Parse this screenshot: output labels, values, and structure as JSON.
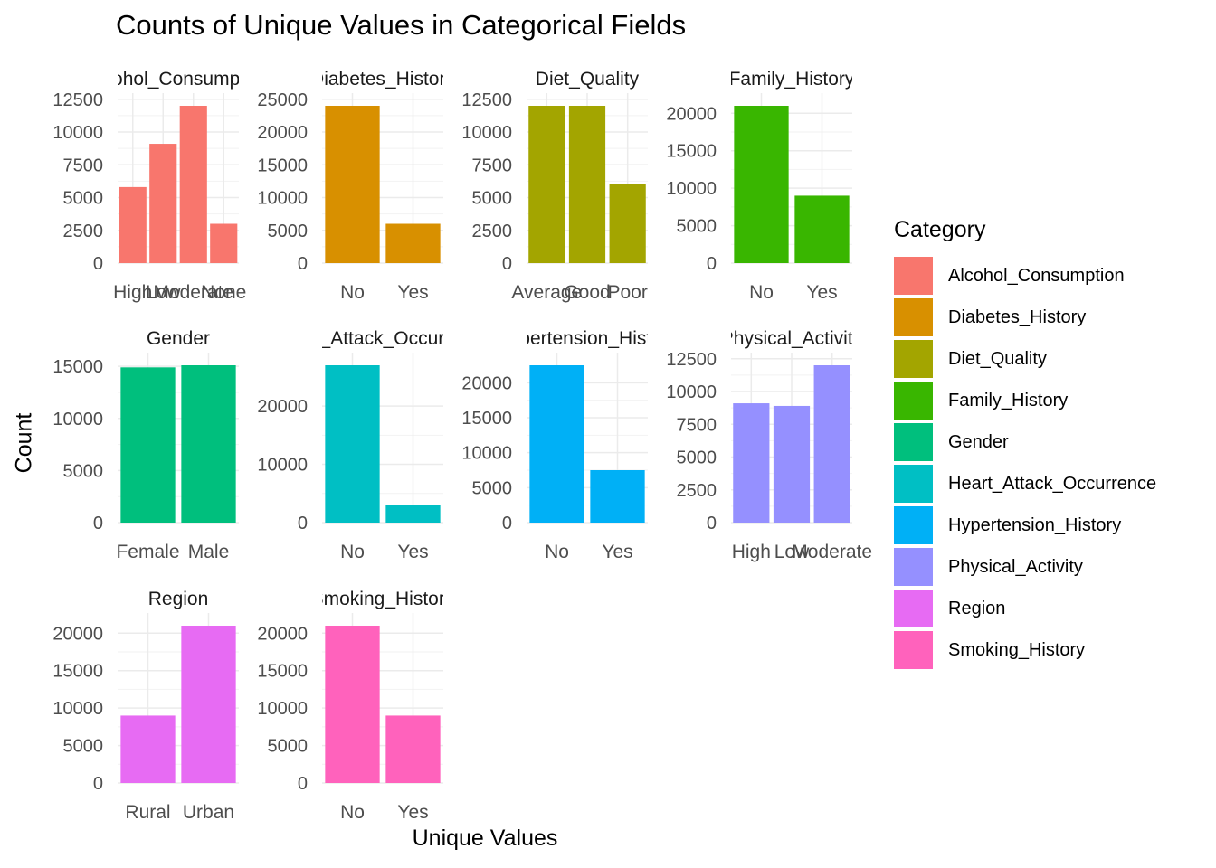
{
  "chart_data": [
    {
      "type": "bar",
      "title": "Counts of Unique Values in Categorical Fields",
      "xlabel": "Unique Values",
      "ylabel": "Count",
      "legend": {
        "title": "Category",
        "placement": "right"
      },
      "grid": true,
      "facets": [
        {
          "name": "Alcohol_Consumption",
          "color": "#F8766D",
          "categories": [
            "High",
            "Moderate",
            "None",
            "Low"
          ],
          "display_categories": [
            "High",
            "Low",
            "Moderate",
            "None"
          ],
          "values": [
            5800,
            9100,
            12000,
            3000
          ],
          "ylim": [
            0,
            12500
          ],
          "yticks": [
            0,
            2500,
            5000,
            7500,
            10000,
            12500
          ]
        },
        {
          "name": "Diabetes_History",
          "color": "#D89000",
          "categories": [
            "No",
            "Yes"
          ],
          "values": [
            24000,
            6000
          ],
          "ylim": [
            0,
            25000
          ],
          "yticks": [
            0,
            5000,
            10000,
            15000,
            20000,
            25000
          ]
        },
        {
          "name": "Diet_Quality",
          "color": "#A3A500",
          "categories": [
            "Average",
            "Good",
            "Poor"
          ],
          "values": [
            12000,
            12000,
            6000
          ],
          "ylim": [
            0,
            12500
          ],
          "yticks": [
            0,
            2500,
            5000,
            7500,
            10000,
            12500
          ]
        },
        {
          "name": "Family_History",
          "color": "#39B600",
          "categories": [
            "No",
            "Yes"
          ],
          "values": [
            21000,
            9000
          ],
          "ylim": [
            0,
            20000
          ],
          "yticks": [
            0,
            5000,
            10000,
            15000,
            20000
          ]
        },
        {
          "name": "Gender",
          "color": "#00BF7D",
          "categories": [
            "Female",
            "Male"
          ],
          "values": [
            14900,
            15100
          ],
          "ylim": [
            0,
            15000
          ],
          "yticks": [
            0,
            5000,
            10000,
            15000
          ]
        },
        {
          "name": "Heart_Attack_Occurrence",
          "color": "#00BFC4",
          "categories": [
            "No",
            "Yes"
          ],
          "values": [
            27000,
            3000
          ],
          "ylim": [
            0,
            20000
          ],
          "yticks": [
            0,
            10000,
            20000
          ]
        },
        {
          "name": "Hypertension_History",
          "color": "#00B0F6",
          "categories": [
            "No",
            "Yes"
          ],
          "values": [
            22500,
            7500
          ],
          "ylim": [
            0,
            20000
          ],
          "yticks": [
            0,
            5000,
            10000,
            15000,
            20000
          ]
        },
        {
          "name": "Physical_Activity",
          "color": "#9590FF",
          "categories": [
            "High",
            "Low",
            "Moderate"
          ],
          "values": [
            9100,
            8900,
            12000
          ],
          "ylim": [
            0,
            12500
          ],
          "yticks": [
            0,
            2500,
            5000,
            7500,
            10000,
            12500
          ]
        },
        {
          "name": "Region",
          "color": "#E76BF3",
          "categories": [
            "Rural",
            "Urban"
          ],
          "values": [
            9000,
            21000
          ],
          "ylim": [
            0,
            20000
          ],
          "yticks": [
            0,
            5000,
            10000,
            15000,
            20000
          ]
        },
        {
          "name": "Smoking_History",
          "color": "#FF62BC",
          "categories": [
            "No",
            "Yes"
          ],
          "values": [
            21000,
            9000
          ],
          "ylim": [
            0,
            20000
          ],
          "yticks": [
            0,
            5000,
            10000,
            15000,
            20000
          ]
        }
      ]
    }
  ]
}
